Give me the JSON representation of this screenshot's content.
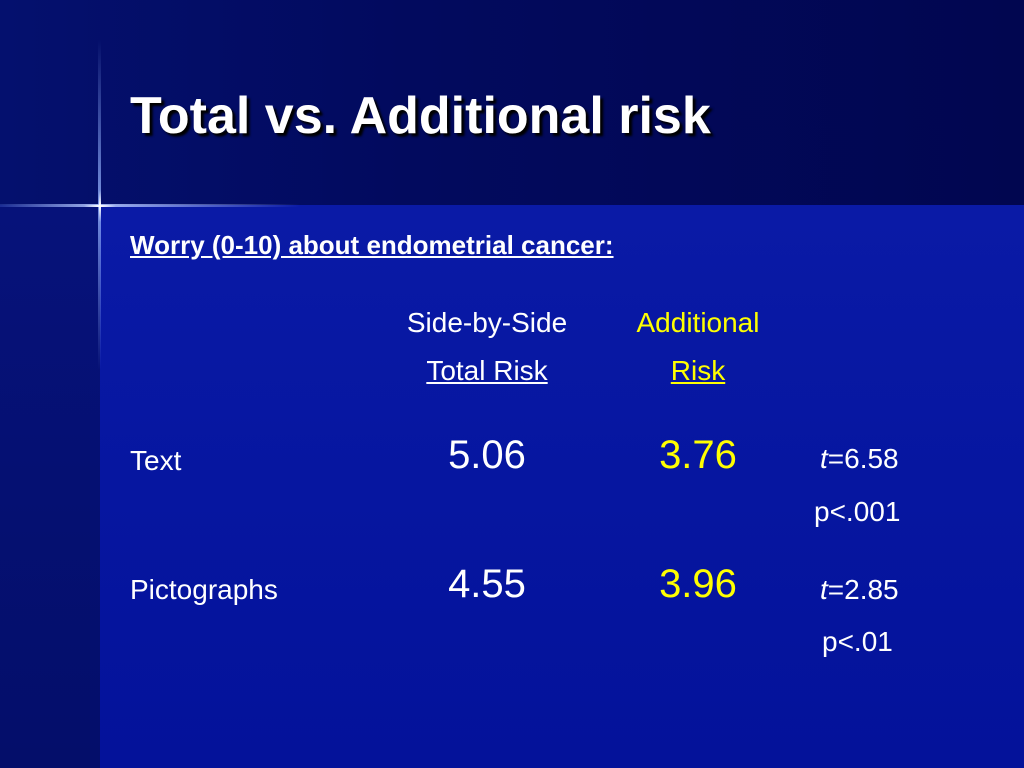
{
  "slide": {
    "title": "Total vs. Additional risk",
    "subtitle": "Worry (0-10) about endometrial cancer:",
    "colors": {
      "background": "#0616a0",
      "text": "#ffffff",
      "highlight": "#ffff00"
    }
  },
  "table": {
    "col1_header": {
      "line1": "Side-by-Side",
      "line2": "Total Risk"
    },
    "col2_header": {
      "line1": "Additional",
      "line2": "Risk"
    },
    "rows": [
      {
        "label": "Text",
        "total": "5.06",
        "additional": "3.76",
        "t_symbol": "t",
        "t_value": "=6.58",
        "p": "p<.001"
      },
      {
        "label": "Pictographs",
        "total": "4.55",
        "additional": "3.96",
        "t_symbol": "t",
        "t_value": "=2.85",
        "p": "p<.01"
      }
    ]
  }
}
